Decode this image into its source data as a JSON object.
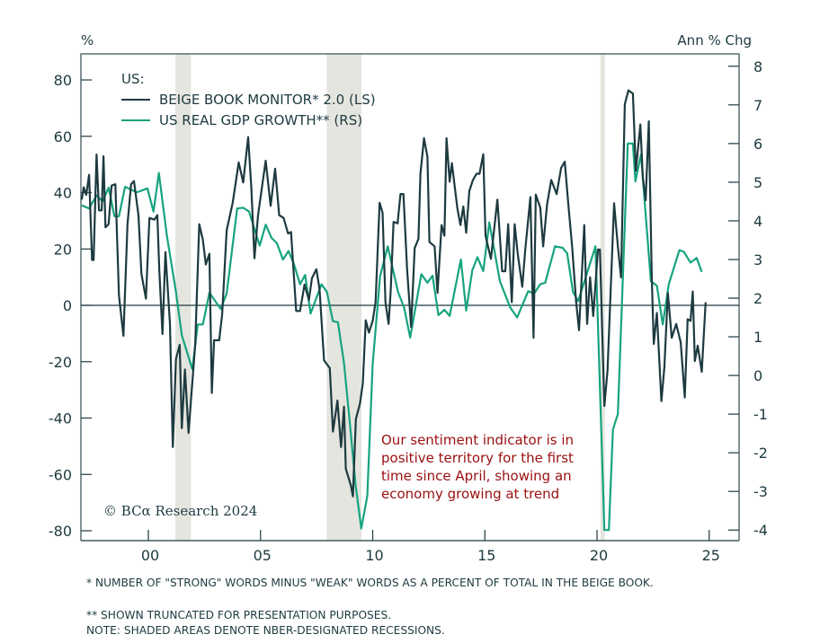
{
  "chart_data": {
    "type": "line",
    "left_axis": {
      "label": "%",
      "ylim": [
        -85,
        90
      ],
      "ticks": [
        -80,
        -60,
        -40,
        -20,
        0,
        20,
        40,
        60,
        80
      ],
      "tick_labels": [
        "-80",
        "-60",
        "-40",
        "-20",
        "0",
        "20",
        "40",
        "60",
        "80"
      ]
    },
    "right_axis": {
      "label": "Ann % Chg",
      "ylim": [
        -4.4,
        8.3
      ],
      "ticks": [
        -4,
        -3,
        -2,
        -1,
        0,
        1,
        2,
        3,
        4,
        5,
        6,
        7,
        8
      ],
      "tick_labels": [
        "-4",
        "-3",
        "-2",
        "-1",
        "0",
        "1",
        "2",
        "3",
        "4",
        "5",
        "6",
        "7",
        "8"
      ]
    },
    "x_axis": {
      "xlim": [
        1996.9,
        2026.3
      ],
      "ticks": [
        2000,
        2005,
        2010,
        2015,
        2020,
        2025
      ],
      "tick_labels": [
        "00",
        "05",
        "10",
        "15",
        "20",
        "25"
      ]
    },
    "legend": {
      "title": "US:",
      "placement": "top-left"
    },
    "recessions": [
      [
        2001.2,
        2001.9
      ],
      [
        2007.95,
        2009.5
      ],
      [
        2020.15,
        2020.35
      ]
    ],
    "series": [
      {
        "name": "BEIGE BOOK MONITOR* 2.0 (LS)",
        "axis": "left",
        "color": "#1d3a40",
        "points": [
          [
            1997.03,
            37.5
          ],
          [
            1997.12,
            41.9
          ],
          [
            1997.23,
            39.2
          ],
          [
            1997.36,
            46.3
          ],
          [
            1997.49,
            16.1
          ],
          [
            1997.56,
            16.1
          ],
          [
            1997.69,
            53.5
          ],
          [
            1997.8,
            33.7
          ],
          [
            1997.92,
            33.7
          ],
          [
            1998.0,
            52.9
          ],
          [
            1998.09,
            27.7
          ],
          [
            1998.23,
            28.8
          ],
          [
            1998.36,
            42.5
          ],
          [
            1998.53,
            43
          ],
          [
            1998.69,
            3.5
          ],
          [
            1998.89,
            -10.8
          ],
          [
            1999.07,
            28.8
          ],
          [
            1999.23,
            43
          ],
          [
            1999.36,
            44.1
          ],
          [
            1999.56,
            32
          ],
          [
            1999.69,
            11.2
          ],
          [
            1999.89,
            2.4
          ],
          [
            2000.05,
            31
          ],
          [
            2000.27,
            30.4
          ],
          [
            2000.4,
            32
          ],
          [
            2000.49,
            12.3
          ],
          [
            2000.63,
            -10.2
          ],
          [
            2000.76,
            18.9
          ],
          [
            2000.96,
            -6.4
          ],
          [
            2001.09,
            -50.3
          ],
          [
            2001.23,
            -19
          ],
          [
            2001.4,
            -14
          ],
          [
            2001.49,
            -43.6
          ],
          [
            2001.63,
            -22.8
          ],
          [
            2001.79,
            -45.3
          ],
          [
            2001.92,
            -31.6
          ],
          [
            2002.09,
            -14
          ],
          [
            2002.27,
            28.8
          ],
          [
            2002.43,
            23.3
          ],
          [
            2002.56,
            14.5
          ],
          [
            2002.72,
            18.3
          ],
          [
            2002.83,
            -31.1
          ],
          [
            2002.93,
            -12.4
          ],
          [
            2003.16,
            -12.4
          ],
          [
            2003.29,
            -3.1
          ],
          [
            2003.49,
            26.6
          ],
          [
            2003.76,
            36.4
          ],
          [
            2004.03,
            50.7
          ],
          [
            2004.23,
            43.6
          ],
          [
            2004.45,
            59.7
          ],
          [
            2004.59,
            41.9
          ],
          [
            2004.73,
            16.7
          ],
          [
            2004.89,
            32
          ],
          [
            2005.23,
            51.3
          ],
          [
            2005.45,
            35.3
          ],
          [
            2005.65,
            48.5
          ],
          [
            2005.83,
            32
          ],
          [
            2006.03,
            31
          ],
          [
            2006.23,
            25.5
          ],
          [
            2006.36,
            26
          ],
          [
            2006.59,
            -2
          ],
          [
            2006.76,
            -2
          ],
          [
            2006.96,
            7.4
          ],
          [
            2007.16,
            1.9
          ],
          [
            2007.29,
            9.6
          ],
          [
            2007.49,
            12.8
          ],
          [
            2007.63,
            5.7
          ],
          [
            2007.83,
            -19.5
          ],
          [
            2008.09,
            -22.3
          ],
          [
            2008.23,
            -44.8
          ],
          [
            2008.43,
            -33.8
          ],
          [
            2008.59,
            -50.3
          ],
          [
            2008.72,
            -36
          ],
          [
            2008.8,
            -58
          ],
          [
            2009.03,
            -64
          ],
          [
            2009.12,
            -67.8
          ],
          [
            2009.25,
            -40.4
          ],
          [
            2009.43,
            -34.9
          ],
          [
            2009.56,
            -27.8
          ],
          [
            2009.69,
            -5.3
          ],
          [
            2009.83,
            -9.7
          ],
          [
            2010.0,
            -5.5
          ],
          [
            2010.13,
            1.1
          ],
          [
            2010.31,
            36.4
          ],
          [
            2010.44,
            32.9
          ],
          [
            2010.57,
            1.1
          ],
          [
            2010.71,
            -6.6
          ],
          [
            2010.8,
            4.9
          ],
          [
            2010.93,
            29.6
          ],
          [
            2011.11,
            29.1
          ],
          [
            2011.24,
            39.5
          ],
          [
            2011.37,
            39.5
          ],
          [
            2011.53,
            13.2
          ],
          [
            2011.71,
            -7.7
          ],
          [
            2011.87,
            20.3
          ],
          [
            2012.04,
            23.6
          ],
          [
            2012.13,
            46.7
          ],
          [
            2012.29,
            59.3
          ],
          [
            2012.44,
            52.7
          ],
          [
            2012.53,
            22.5
          ],
          [
            2012.76,
            20.9
          ],
          [
            2012.89,
            4.4
          ],
          [
            2013.07,
            28.5
          ],
          [
            2013.2,
            24.7
          ],
          [
            2013.29,
            59.3
          ],
          [
            2013.43,
            43.9
          ],
          [
            2013.53,
            50.5
          ],
          [
            2013.77,
            34.6
          ],
          [
            2013.91,
            28.5
          ],
          [
            2014.04,
            35.1
          ],
          [
            2014.17,
            25.8
          ],
          [
            2014.31,
            40.6
          ],
          [
            2014.47,
            44.5
          ],
          [
            2014.63,
            46.7
          ],
          [
            2014.76,
            46.7
          ],
          [
            2014.93,
            53.6
          ],
          [
            2015.03,
            24.7
          ],
          [
            2015.27,
            16.5
          ],
          [
            2015.56,
            37.5
          ],
          [
            2015.77,
            12.1
          ],
          [
            2015.91,
            12.1
          ],
          [
            2016.04,
            28.8
          ],
          [
            2016.2,
            1.1
          ],
          [
            2016.33,
            28.8
          ],
          [
            2016.47,
            18.1
          ],
          [
            2016.67,
            6.6
          ],
          [
            2016.8,
            19.8
          ],
          [
            2017.03,
            38.4
          ],
          [
            2017.17,
            -11.5
          ],
          [
            2017.27,
            39.3
          ],
          [
            2017.47,
            34.6
          ],
          [
            2017.6,
            20.9
          ],
          [
            2017.77,
            35.7
          ],
          [
            2017.96,
            44.5
          ],
          [
            2018.2,
            39.5
          ],
          [
            2018.4,
            48.8
          ],
          [
            2018.56,
            51
          ],
          [
            2018.73,
            35.1
          ],
          [
            2018.89,
            20.9
          ],
          [
            2019.07,
            1.1
          ],
          [
            2019.2,
            -8.8
          ],
          [
            2019.33,
            12.1
          ],
          [
            2019.43,
            28.5
          ],
          [
            2019.56,
            -6.6
          ],
          [
            2019.69,
            9.9
          ],
          [
            2019.83,
            -3.8
          ],
          [
            2020.04,
            19.8
          ],
          [
            2020.13,
            19.8
          ],
          [
            2020.33,
            -35.7
          ],
          [
            2020.47,
            -23
          ],
          [
            2020.6,
            3.8
          ],
          [
            2020.76,
            36.2
          ],
          [
            2020.93,
            20.9
          ],
          [
            2021.07,
            9.9
          ],
          [
            2021.24,
            71.4
          ],
          [
            2021.4,
            76.3
          ],
          [
            2021.6,
            75.2
          ],
          [
            2021.73,
            47.7
          ],
          [
            2021.93,
            64.2
          ],
          [
            2022.04,
            45.6
          ],
          [
            2022.17,
            37.3
          ],
          [
            2022.31,
            65.3
          ],
          [
            2022.44,
            9.9
          ],
          [
            2022.53,
            -13.7
          ],
          [
            2022.67,
            -2.7
          ],
          [
            2022.87,
            -34
          ],
          [
            2023.0,
            -22
          ],
          [
            2023.16,
            4.4
          ],
          [
            2023.33,
            -11.5
          ],
          [
            2023.53,
            -6.6
          ],
          [
            2023.73,
            -13.2
          ],
          [
            2023.91,
            -32.7
          ],
          [
            2024.04,
            -4.9
          ],
          [
            2024.17,
            -5.5
          ],
          [
            2024.27,
            4.9
          ],
          [
            2024.36,
            -19.8
          ],
          [
            2024.49,
            -14.3
          ],
          [
            2024.67,
            -23.6
          ],
          [
            2024.84,
            1.1
          ]
        ]
      },
      {
        "name": "US REAL GDP GROWTH** (RS)",
        "axis": "right",
        "color": "#17a37e",
        "points": [
          [
            1997.03,
            4.4
          ],
          [
            1997.36,
            4.32
          ],
          [
            1997.69,
            4.66
          ],
          [
            1997.96,
            4.5
          ],
          [
            1998.23,
            4.86
          ],
          [
            1998.49,
            4.12
          ],
          [
            1998.69,
            4.12
          ],
          [
            1998.96,
            4.88
          ],
          [
            1999.49,
            4.74
          ],
          [
            1999.96,
            4.84
          ],
          [
            2000.23,
            4.24
          ],
          [
            2000.47,
            5.24
          ],
          [
            2000.83,
            3.6
          ],
          [
            2001.23,
            2.16
          ],
          [
            2001.49,
            1.04
          ],
          [
            2001.96,
            0.16
          ],
          [
            2002.2,
            1.32
          ],
          [
            2002.43,
            1.32
          ],
          [
            2002.72,
            2.14
          ],
          [
            2003.23,
            1.72
          ],
          [
            2003.49,
            2.12
          ],
          [
            2003.96,
            4.32
          ],
          [
            2004.23,
            4.34
          ],
          [
            2004.49,
            4.24
          ],
          [
            2004.96,
            3.36
          ],
          [
            2005.23,
            3.9
          ],
          [
            2005.49,
            3.56
          ],
          [
            2005.73,
            3.42
          ],
          [
            2006.0,
            3.0
          ],
          [
            2006.25,
            3.22
          ],
          [
            2006.49,
            2.88
          ],
          [
            2006.76,
            2.36
          ],
          [
            2006.99,
            2.6
          ],
          [
            2007.23,
            1.6
          ],
          [
            2007.72,
            2.36
          ],
          [
            2007.96,
            2.16
          ],
          [
            2008.23,
            1.4
          ],
          [
            2008.45,
            1.38
          ],
          [
            2008.72,
            0.32
          ],
          [
            2008.99,
            -1.28
          ],
          [
            2009.23,
            -2.8
          ],
          [
            2009.49,
            -3.96
          ],
          [
            2009.76,
            -3.12
          ],
          [
            2010.0,
            0.3
          ],
          [
            2010.33,
            2.56
          ],
          [
            2010.67,
            3.34
          ],
          [
            2011.13,
            2.16
          ],
          [
            2011.4,
            1.76
          ],
          [
            2011.67,
            0.98
          ],
          [
            2012.17,
            2.62
          ],
          [
            2012.44,
            2.4
          ],
          [
            2012.67,
            2.58
          ],
          [
            2012.93,
            1.56
          ],
          [
            2013.2,
            1.7
          ],
          [
            2013.43,
            1.54
          ],
          [
            2013.93,
            3.0
          ],
          [
            2014.17,
            1.68
          ],
          [
            2014.44,
            2.72
          ],
          [
            2014.67,
            3.06
          ],
          [
            2014.93,
            2.7
          ],
          [
            2015.2,
            3.96
          ],
          [
            2015.67,
            2.44
          ],
          [
            2016.13,
            1.76
          ],
          [
            2016.44,
            1.5
          ],
          [
            2016.93,
            2.18
          ],
          [
            2017.2,
            2.12
          ],
          [
            2017.47,
            2.36
          ],
          [
            2017.69,
            2.4
          ],
          [
            2018.13,
            3.34
          ],
          [
            2018.47,
            3.3
          ],
          [
            2018.67,
            3.16
          ],
          [
            2018.93,
            2.16
          ],
          [
            2019.16,
            1.92
          ],
          [
            2019.93,
            3.34
          ],
          [
            2020.33,
            -4.0
          ],
          [
            2020.53,
            -4.0
          ],
          [
            2020.71,
            -1.4
          ],
          [
            2020.93,
            -1.0
          ],
          [
            2021.37,
            6.0
          ],
          [
            2021.6,
            6.0
          ],
          [
            2021.71,
            5.02
          ],
          [
            2021.96,
            5.72
          ],
          [
            2022.4,
            2.44
          ],
          [
            2022.67,
            2.32
          ],
          [
            2022.93,
            1.32
          ],
          [
            2023.2,
            2.36
          ],
          [
            2023.67,
            3.24
          ],
          [
            2023.87,
            3.2
          ],
          [
            2024.17,
            2.92
          ],
          [
            2024.44,
            3.04
          ],
          [
            2024.67,
            2.68
          ]
        ]
      }
    ],
    "annotation": "Our sentiment indicator is in positive territory for the first time since April, showing an economy growing at trend",
    "grid": false
  },
  "copyright": "© BCα Research 2024",
  "footnotes": [
    "*  NUMBER OF \"STRONG\" WORDS MINUS \"WEAK\" WORDS AS A PERCENT OF TOTAL IN THE BEIGE BOOK.",
    "** SHOWN TRUNCATED FOR PRESENTATION PURPOSES.",
    "NOTE: SHADED AREAS DENOTE NBER-DESIGNATED RECESSIONS."
  ],
  "colors": {
    "recession": "#e5e5df",
    "axis": "#1d3a40",
    "annotation": "#9a1010"
  }
}
